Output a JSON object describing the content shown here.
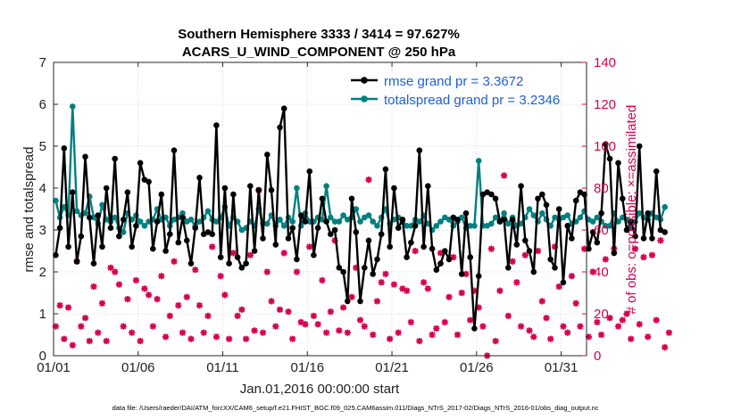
{
  "chart_data": {
    "type": "line",
    "title_line1": "Southern Hemisphere 3333 / 3414 = 97.627%",
    "title_line2": "ACARS_U_WIND_COMPONENT @ 250 hPa",
    "xlabel": "Jan.01,2016 00:00:00 start",
    "ylabel_left": "rmse and totalspread",
    "ylabel_right": "# of obs: o=possible; ×=assimilated",
    "footer": "data file: /Users/raeder/DAI/ATM_forcXX/CAM6_setup/f.e21.FHIST_BGC.f09_025.CAM6assim.011/Diags_NTrS_2017-02/Diags_NTrS_2016-01/obs_diag_output.nc",
    "xlim": [
      1,
      32.5
    ],
    "ylim_left": [
      0,
      7
    ],
    "ylim_right": [
      0,
      140
    ],
    "xticks": [
      1,
      6,
      11,
      16,
      21,
      26,
      31
    ],
    "xtick_labels": [
      "01/01",
      "01/06",
      "01/11",
      "01/16",
      "01/21",
      "01/26",
      "01/31"
    ],
    "yticks_left": [
      0,
      1,
      2,
      3,
      4,
      5,
      6,
      7
    ],
    "yticks_right": [
      0,
      20,
      40,
      60,
      80,
      100,
      120,
      140
    ],
    "legend": [
      {
        "label": "rmse grand pr = 3.3672",
        "color": "#000000"
      },
      {
        "label": "totalspread grand pr = 3.2346",
        "color": "#008080"
      }
    ],
    "colors": {
      "rmse": "#000000",
      "spread": "#008080",
      "obs": "#d6004f",
      "right_axis": "#d6004f",
      "legend_text": "#1f5fd6"
    },
    "x_start": 1.125,
    "x_step": 0.25,
    "rmse": [
      2.4,
      3.05,
      4.95,
      2.6,
      3.9,
      2.25,
      2.85,
      4.75,
      3.3,
      2.2,
      3.35,
      2.6,
      4.0,
      3.05,
      4.7,
      2.85,
      3.25,
      3.9,
      2.6,
      3.1,
      4.6,
      4.2,
      4.15,
      2.55,
      3.2,
      3.85,
      2.5,
      2.9,
      4.9,
      2.7,
      3.3,
      2.75,
      2.2,
      3.05,
      4.25,
      2.9,
      2.95,
      2.9,
      5.5,
      2.35,
      4.0,
      2.2,
      3.85,
      2.35,
      2.1,
      2.2,
      4.05,
      2.5,
      3.95,
      2.8,
      4.8,
      3.95,
      2.65,
      5.45,
      5.9,
      2.8,
      3.05,
      2.3,
      3.35,
      3.2,
      4.4,
      2.4,
      3.05,
      3.75,
      3.2,
      2.9,
      3.0,
      2.1,
      2.0,
      1.3,
      3.75,
      2.95,
      1.3,
      2.1,
      2.75,
      1.95,
      2.3,
      2.9,
      4.45,
      2.6,
      4.0,
      3.05,
      3.25,
      2.35,
      2.7,
      3.1,
      4.9,
      2.6,
      4.05,
      2.55,
      2.05,
      2.2,
      2.5,
      2.3,
      3.3,
      3.25,
      1.95,
      3.4,
      2.35,
      0.65,
      1.9,
      3.85,
      3.9,
      3.85,
      3.75,
      3.2,
      3.25,
      2.1,
      3.25,
      2.65,
      4.05,
      2.75,
      2.5,
      2.0,
      3.75,
      3.85,
      3.6,
      2.3,
      2.1,
      3.5,
      1.75,
      3.1,
      2.8,
      3.7,
      3.9,
      3.85,
      2.55,
      2.95,
      2.7,
      3.4,
      5.05,
      4.7,
      2.45,
      4.6,
      3.75,
      3.0,
      3.2,
      2.85,
      5.0,
      2.8,
      3.4,
      2.8,
      4.4,
      3.0,
      2.95
    ],
    "spread": [
      3.7,
      3.3,
      3.55,
      3.35,
      5.95,
      3.45,
      3.35,
      3.4,
      3.8,
      3.3,
      3.15,
      3.6,
      3.25,
      3.2,
      3.3,
      3.05,
      2.95,
      3.4,
      3.25,
      3.35,
      3.2,
      3.1,
      3.2,
      3.25,
      3.5,
      3.25,
      3.3,
      3.1,
      3.25,
      3.3,
      3.4,
      3.2,
      3.25,
      3.1,
      3.2,
      3.3,
      3.45,
      3.25,
      3.2,
      3.3,
      3.55,
      3.1,
      3.3,
      3.2,
      3.0,
      3.05,
      3.2,
      3.1,
      3.5,
      3.15,
      3.15,
      3.35,
      3.1,
      3.25,
      3.1,
      3.3,
      3.2,
      4.0,
      3.1,
      3.4,
      3.2,
      3.2,
      3.3,
      3.25,
      4.05,
      3.3,
      3.2,
      3.2,
      3.35,
      3.25,
      3.3,
      3.5,
      3.2,
      3.3,
      3.35,
      3.2,
      3.1,
      3.3,
      3.5,
      3.15,
      3.25,
      3.3,
      3.2,
      3.1,
      3.1,
      3.25,
      3.2,
      3.35,
      3.15,
      3.0,
      3.1,
      3.2,
      3.3,
      3.25,
      3.1,
      3.2,
      3.3,
      3.05,
      3.1,
      3.1,
      4.65,
      3.1,
      3.1,
      3.15,
      3.3,
      3.2,
      3.4,
      3.15,
      3.3,
      3.1,
      3.15,
      3.3,
      3.5,
      3.35,
      3.2,
      3.4,
      3.25,
      3.1,
      3.3,
      3.25,
      3.3,
      3.35,
      3.15,
      3.2,
      3.3,
      3.45,
      3.25,
      3.2,
      3.3,
      3.2,
      3.1,
      3.1,
      3.4,
      3.2,
      3.3,
      3.25,
      3.05,
      3.2,
      3.4,
      3.3,
      3.25,
      3.4,
      3.3,
      3.25,
      3.55
    ],
    "nobs": [
      14,
      24,
      8,
      23,
      5,
      45,
      14,
      18,
      7,
      33,
      11,
      25,
      7,
      42,
      40,
      34,
      14,
      27,
      11,
      36,
      7,
      32,
      29,
      14,
      27,
      38,
      9,
      19,
      45,
      24,
      11,
      28,
      8,
      41,
      24,
      11,
      19,
      52,
      9,
      38,
      29,
      8,
      49,
      19,
      22,
      8,
      48,
      12,
      79,
      11,
      40,
      26,
      14,
      22,
      49,
      21,
      8,
      40,
      16,
      15,
      52,
      19,
      15,
      36,
      11,
      21,
      55,
      12,
      23,
      11,
      28,
      42,
      17,
      14,
      84,
      10,
      26,
      35,
      39,
      8,
      34,
      11,
      32,
      31,
      16,
      50,
      7,
      35,
      32,
      10,
      13,
      49,
      16,
      28,
      47,
      10,
      30,
      39,
      17,
      31,
      23,
      14,
      0,
      51,
      7,
      31,
      86,
      19,
      45,
      35,
      14,
      48,
      12,
      9,
      50,
      26,
      18,
      8,
      52,
      33,
      14,
      11,
      38,
      25,
      14,
      51,
      9,
      40,
      16,
      10,
      46,
      18,
      51,
      14,
      17,
      20,
      8,
      51,
      15,
      47,
      9,
      48,
      17,
      55,
      4,
      11
    ]
  }
}
